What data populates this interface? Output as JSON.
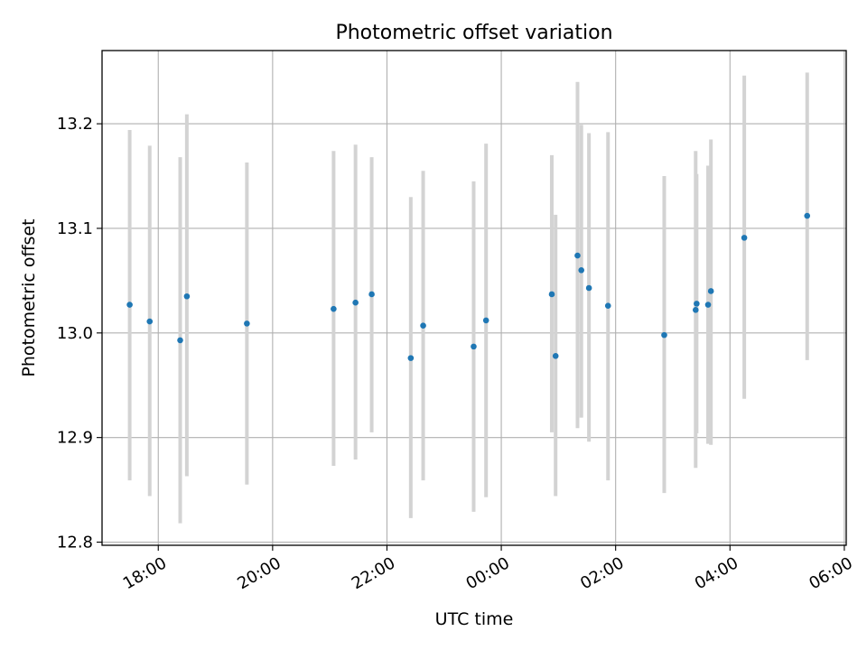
{
  "chart_data": {
    "type": "scatter",
    "title": "Photometric offset variation",
    "xlabel": "UTC time",
    "ylabel": "Photometric offset",
    "x_unit": "UTC time (HH:MM, evening of day 1 to morning of day 2)",
    "ylim": [
      12.797,
      13.27
    ],
    "xlim": [
      "17:01",
      "06:02"
    ],
    "grid": true,
    "x_ticks": [
      "18:00",
      "20:00",
      "22:00",
      "00:00",
      "02:00",
      "04:00",
      "06:00"
    ],
    "y_ticks": [
      "12.8",
      "12.9",
      "13.0",
      "13.1",
      "13.2"
    ],
    "marker_color": "#1f77b4",
    "errorbar_color": "#d3d3d3",
    "points": [
      {
        "t": "17:30",
        "y": 13.027,
        "lo": 12.859,
        "hi": 13.194
      },
      {
        "t": "17:51",
        "y": 13.011,
        "lo": 12.844,
        "hi": 13.179
      },
      {
        "t": "18:23",
        "y": 12.993,
        "lo": 12.818,
        "hi": 13.168
      },
      {
        "t": "18:30",
        "y": 13.035,
        "lo": 12.863,
        "hi": 13.209
      },
      {
        "t": "19:33",
        "y": 13.009,
        "lo": 12.855,
        "hi": 13.163
      },
      {
        "t": "21:04",
        "y": 13.023,
        "lo": 12.873,
        "hi": 13.174
      },
      {
        "t": "21:27",
        "y": 13.029,
        "lo": 12.879,
        "hi": 13.18
      },
      {
        "t": "21:44",
        "y": 13.037,
        "lo": 12.905,
        "hi": 13.168
      },
      {
        "t": "22:25",
        "y": 12.976,
        "lo": 12.823,
        "hi": 13.13
      },
      {
        "t": "22:38",
        "y": 13.007,
        "lo": 12.859,
        "hi": 13.155
      },
      {
        "t": "23:31",
        "y": 12.987,
        "lo": 12.829,
        "hi": 13.145
      },
      {
        "t": "23:44",
        "y": 13.012,
        "lo": 12.843,
        "hi": 13.181
      },
      {
        "t": "00:53",
        "y": 13.037,
        "lo": 12.905,
        "hi": 13.17
      },
      {
        "t": "00:57",
        "y": 12.978,
        "lo": 12.844,
        "hi": 13.113
      },
      {
        "t": "01:20",
        "y": 13.074,
        "lo": 12.909,
        "hi": 13.24
      },
      {
        "t": "01:24",
        "y": 13.06,
        "lo": 12.919,
        "hi": 13.199
      },
      {
        "t": "01:32",
        "y": 13.043,
        "lo": 12.896,
        "hi": 13.191
      },
      {
        "t": "01:52",
        "y": 13.026,
        "lo": 12.859,
        "hi": 13.192
      },
      {
        "t": "02:51",
        "y": 12.998,
        "lo": 12.847,
        "hi": 13.15
      },
      {
        "t": "03:24",
        "y": 13.022,
        "lo": 12.871,
        "hi": 13.174
      },
      {
        "t": "03:25",
        "y": 13.028,
        "lo": 12.904,
        "hi": 13.152
      },
      {
        "t": "03:37",
        "y": 13.027,
        "lo": 12.894,
        "hi": 13.16
      },
      {
        "t": "03:40",
        "y": 13.04,
        "lo": 12.893,
        "hi": 13.185
      },
      {
        "t": "04:15",
        "y": 13.091,
        "lo": 12.937,
        "hi": 13.246
      },
      {
        "t": "05:21",
        "y": 13.112,
        "lo": 12.974,
        "hi": 13.249
      }
    ]
  }
}
